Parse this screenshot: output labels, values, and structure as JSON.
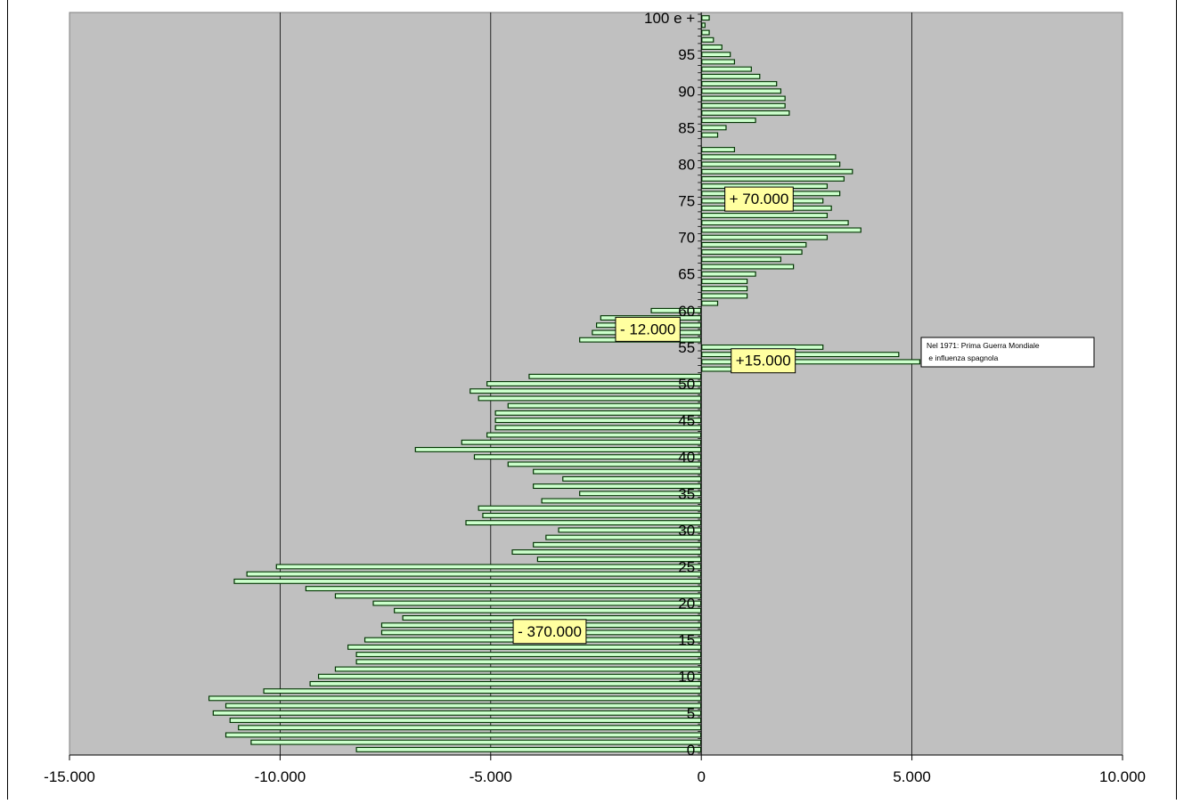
{
  "chart_data": {
    "type": "bar",
    "orientation": "horizontal",
    "title": "",
    "xlabel": "",
    "ylabel": "",
    "xlim": [
      -15000,
      10000
    ],
    "x_ticks": [
      -15000,
      -10000,
      -5000,
      0,
      5000,
      10000
    ],
    "x_tick_labels": [
      "-15.000",
      "-10.000",
      "-5.000",
      "0",
      "5.000",
      "10.000"
    ],
    "age_tick_labels": [
      "0",
      "5",
      "10",
      "15",
      "20",
      "25",
      "30",
      "35",
      "40",
      "45",
      "50",
      "55",
      "60",
      "65",
      "70",
      "75",
      "80",
      "85",
      "90",
      "95",
      "100 e +"
    ],
    "grid": "vertical",
    "legend": "none",
    "categories": [
      0,
      1,
      2,
      3,
      4,
      5,
      6,
      7,
      8,
      9,
      10,
      11,
      12,
      13,
      14,
      15,
      16,
      17,
      18,
      19,
      20,
      21,
      22,
      23,
      24,
      25,
      26,
      27,
      28,
      29,
      30,
      31,
      32,
      33,
      34,
      35,
      36,
      37,
      38,
      39,
      40,
      41,
      42,
      43,
      44,
      45,
      46,
      47,
      48,
      49,
      50,
      51,
      52,
      53,
      54,
      55,
      56,
      57,
      58,
      59,
      60,
      61,
      62,
      63,
      64,
      65,
      66,
      67,
      68,
      69,
      70,
      71,
      72,
      73,
      74,
      75,
      76,
      77,
      78,
      79,
      80,
      81,
      82,
      83,
      84,
      85,
      86,
      87,
      88,
      89,
      90,
      91,
      92,
      93,
      94,
      95,
      96,
      97,
      98,
      99,
      100
    ],
    "values": [
      -8200,
      -10700,
      -11300,
      -11000,
      -11200,
      -11600,
      -11300,
      -11700,
      -10400,
      -9300,
      -9100,
      -8700,
      -8200,
      -8200,
      -8400,
      -8000,
      -7600,
      -7600,
      -7100,
      -7300,
      -7800,
      -8700,
      -9400,
      -11100,
      -10800,
      -10100,
      -3900,
      -4500,
      -4000,
      -3700,
      -3400,
      -5600,
      -5200,
      -5300,
      -3800,
      -2900,
      -4000,
      -3300,
      -4000,
      -4600,
      -5400,
      -6800,
      -5700,
      -5100,
      -4900,
      -4900,
      -4900,
      -4600,
      -5300,
      -5500,
      -5100,
      -4100,
      1900,
      5200,
      4700,
      2900,
      -2900,
      -2600,
      -2500,
      -2400,
      -1200,
      400,
      1100,
      1100,
      1100,
      1300,
      2200,
      1900,
      2400,
      2500,
      3000,
      3800,
      3500,
      3000,
      3100,
      2900,
      3300,
      3000,
      3400,
      3600,
      3300,
      3200,
      800,
      0,
      400,
      600,
      1300,
      2100,
      2000,
      2000,
      1900,
      1800,
      1400,
      1200,
      800,
      700,
      500,
      300,
      200,
      100,
      200
    ],
    "bar_color": "#003300",
    "bar_highlight_color": "#ccffcc",
    "plot_background": "#c0c0c0",
    "annotations": [
      {
        "text": "- 370.000",
        "x": -3600,
        "y": 16.2
      },
      {
        "text": "+ 70.000",
        "x": 1370,
        "y": 75.3
      },
      {
        "text": "- 12.000",
        "x": -1270,
        "y": 57.5
      },
      {
        "text": "+15.000",
        "x": 1470,
        "y": 53.2
      }
    ],
    "note": {
      "lines": [
        "Nel 1971: Prima Guerra Mondiale",
        " e influenza spagnola"
      ]
    }
  }
}
